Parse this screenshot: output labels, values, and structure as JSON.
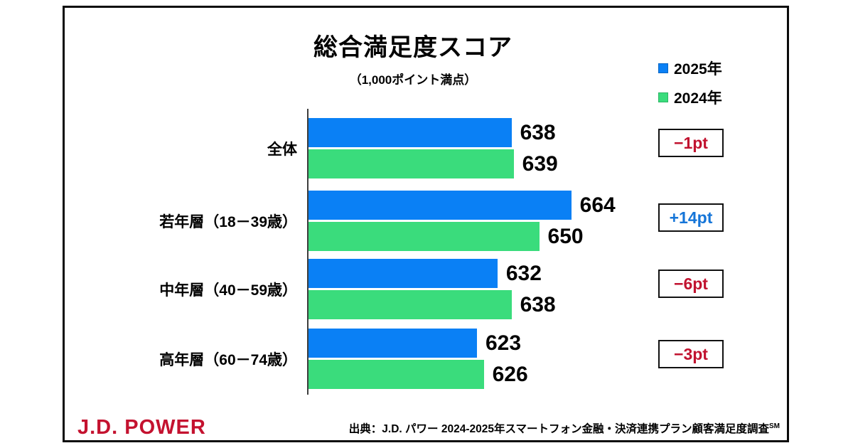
{
  "chart_data": {
    "type": "bar",
    "orientation": "horizontal",
    "title": "総合満足度スコア",
    "subtitle": "（1,000ポイント満点）",
    "categories": [
      "全体",
      "若年層（18－39歳）",
      "中年層（40－59歳）",
      "高年層（60－74歳）"
    ],
    "series": [
      {
        "name": "2025年",
        "color": "#0a80f5",
        "border": "#0766c4",
        "values": [
          638,
          664,
          632,
          623
        ]
      },
      {
        "name": "2024年",
        "color": "#3adc7c",
        "border": "#2db665",
        "values": [
          639,
          650,
          638,
          626
        ]
      }
    ],
    "diffs": [
      {
        "label": "−1pt",
        "color": "#c1122f"
      },
      {
        "label": "+14pt",
        "color": "#1575d8"
      },
      {
        "label": "−6pt",
        "color": "#c1122f"
      },
      {
        "label": "−3pt",
        "color": "#c1122f"
      }
    ],
    "xlim": [
      550,
      685
    ],
    "grid": false,
    "legend_position": "top-right"
  },
  "footer": {
    "logo": "J.D. POWER",
    "source": "出典：J.D. パワー 2024-2025年スマートフォン金融・決済連携プラン顧客満足度調査",
    "source_sup": "SM"
  },
  "colors": {
    "brand_red": "#c4122f",
    "positive_blue": "#1575d8",
    "bar_blue": "#0a80f5",
    "bar_green": "#3adc7c"
  }
}
